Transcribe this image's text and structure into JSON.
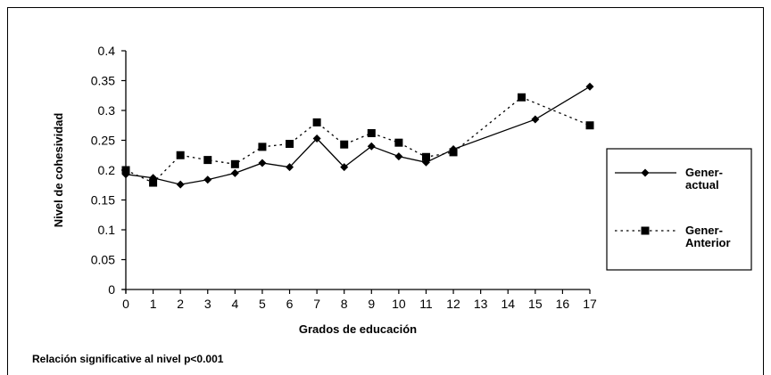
{
  "footnote": "Relación significative al nivel p<0.001",
  "chart_data": {
    "type": "line",
    "title": "",
    "xlabel": "Grados de educación",
    "ylabel": "Nivel de cohesividad",
    "x_ticks": [
      "0",
      "1",
      "2",
      "3",
      "4",
      "5",
      "6",
      "7",
      "8",
      "9",
      "10",
      "11",
      "12",
      "13",
      "14",
      "15",
      "16",
      "17"
    ],
    "ylim": [
      0,
      0.4
    ],
    "y_ticks": [
      "0",
      "0.05",
      "0.1",
      "0.15",
      "0.2",
      "0.25",
      "0.3",
      "0.35",
      "0.4"
    ],
    "grid": false,
    "legend_position": "right",
    "series": [
      {
        "name": "Gener-actual",
        "legend_lines": [
          "Gener-",
          "actual"
        ],
        "style": "solid",
        "marker": "diamond",
        "x": [
          0,
          1,
          2,
          3,
          4,
          5,
          6,
          7,
          8,
          9,
          10,
          11,
          12,
          15,
          17
        ],
        "values": [
          0.193,
          0.187,
          0.176,
          0.184,
          0.195,
          0.212,
          0.205,
          0.253,
          0.205,
          0.24,
          0.223,
          0.213,
          0.235,
          0.285,
          0.34
        ]
      },
      {
        "name": "Gener-Anterior",
        "legend_lines": [
          "Gener-",
          "Anterior"
        ],
        "style": "dotted",
        "marker": "square",
        "x": [
          0,
          1,
          2,
          3,
          4,
          5,
          6,
          7,
          8,
          9,
          10,
          11,
          12,
          14.5,
          17
        ],
        "values": [
          0.2,
          0.179,
          0.225,
          0.217,
          0.21,
          0.239,
          0.244,
          0.28,
          0.243,
          0.262,
          0.246,
          0.222,
          0.23,
          0.322,
          0.275
        ]
      }
    ]
  }
}
